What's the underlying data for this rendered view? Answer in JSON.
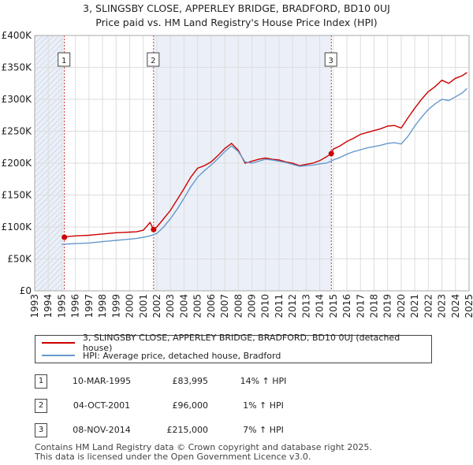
{
  "title_line1": "3, SLINGSBY CLOSE, APPERLEY BRIDGE, BRADFORD, BD10 0UJ",
  "title_line2": "Price paid vs. HM Land Registry's House Price Index (HPI)",
  "colors": {
    "property": "#cc0000",
    "hpi": "#6699cc",
    "shade": "#dde6f4",
    "grid": "#dddddd"
  },
  "chart_data": {
    "type": "line",
    "x_ticks": [
      "1993",
      "1994",
      "1995",
      "1996",
      "1997",
      "1998",
      "1999",
      "2000",
      "2001",
      "2002",
      "2003",
      "2004",
      "2005",
      "2006",
      "2007",
      "2008",
      "2009",
      "2010",
      "2011",
      "2012",
      "2013",
      "2014",
      "2015",
      "2016",
      "2017",
      "2018",
      "2019",
      "2020",
      "2021",
      "2022",
      "2023",
      "2024",
      "2025"
    ],
    "y_ticks": [
      "£0",
      "£50K",
      "£100K",
      "£150K",
      "£200K",
      "£250K",
      "£300K",
      "£350K",
      "£400K"
    ],
    "xlim": [
      1993,
      2025
    ],
    "ylim": [
      0,
      400000
    ],
    "series": [
      {
        "name": "3, SLINGSBY CLOSE, APPERLEY BRIDGE, BRADFORD, BD10 0UJ (detached house)",
        "x": [
          1995.19,
          1995.5,
          1996,
          1996.5,
          1997,
          1997.5,
          1998,
          1998.5,
          1999,
          1999.5,
          2000,
          2000.5,
          2001,
          2001.5,
          2001.75,
          2002,
          2002.5,
          2003,
          2003.5,
          2004,
          2004.5,
          2005,
          2005.5,
          2006,
          2006.5,
          2007,
          2007.5,
          2008,
          2008.5,
          2009,
          2009.5,
          2010,
          2010.5,
          2011,
          2011.5,
          2012,
          2012.5,
          2013,
          2013.5,
          2014,
          2014.5,
          2014.85,
          2015,
          2015.5,
          2016,
          2016.5,
          2017,
          2017.5,
          2018,
          2018.5,
          2019,
          2019.5,
          2020,
          2020.5,
          2021,
          2021.5,
          2022,
          2022.5,
          2023,
          2023.5,
          2024,
          2024.5,
          2024.85
        ],
        "y": [
          83995,
          85000,
          86000,
          86500,
          87000,
          88000,
          89000,
          90000,
          91000,
          91500,
          92000,
          92500,
          95000,
          107000,
          96000,
          100000,
          113000,
          126000,
          143000,
          160000,
          178000,
          192000,
          196000,
          202000,
          212000,
          223000,
          231000,
          220000,
          200000,
          203000,
          206000,
          208000,
          206000,
          205000,
          202000,
          200000,
          196000,
          198000,
          200000,
          204000,
          210000,
          215000,
          222000,
          227000,
          234000,
          239000,
          245000,
          248000,
          251000,
          254000,
          258000,
          259000,
          255000,
          271000,
          286000,
          300000,
          312000,
          320000,
          330000,
          325000,
          333000,
          337000,
          342000
        ]
      },
      {
        "name": "HPI: Average price, detached house, Bradford",
        "x": [
          1995.0,
          1995.5,
          1996,
          1996.5,
          1997,
          1997.5,
          1998,
          1998.5,
          1999,
          1999.5,
          2000,
          2000.5,
          2001,
          2001.5,
          2002,
          2002.5,
          2003,
          2003.5,
          2004,
          2004.5,
          2005,
          2005.5,
          2006,
          2006.5,
          2007,
          2007.5,
          2008,
          2008.5,
          2009,
          2009.5,
          2010,
          2010.5,
          2011,
          2011.5,
          2012,
          2012.5,
          2013,
          2013.5,
          2014,
          2014.5,
          2015,
          2015.5,
          2016,
          2016.5,
          2017,
          2017.5,
          2018,
          2018.5,
          2019,
          2019.5,
          2020,
          2020.5,
          2021,
          2021.5,
          2022,
          2022.5,
          2023,
          2023.5,
          2024,
          2024.5,
          2024.85
        ],
        "y": [
          73000,
          73500,
          74000,
          74500,
          75000,
          76000,
          77000,
          78000,
          79000,
          80000,
          81000,
          82000,
          84000,
          86000,
          90000,
          100000,
          113000,
          128000,
          145000,
          163000,
          178000,
          188000,
          197000,
          207000,
          218000,
          227000,
          218000,
          202000,
          200000,
          203000,
          206000,
          205000,
          203000,
          201000,
          198000,
          195000,
          196000,
          197000,
          199000,
          200000,
          205000,
          209000,
          214000,
          218000,
          221000,
          224000,
          226000,
          228000,
          231000,
          232000,
          230000,
          242000,
          258000,
          272000,
          284000,
          293000,
          300000,
          298000,
          304000,
          310000,
          317000
        ]
      }
    ],
    "sales": [
      {
        "label": "1",
        "x": 1995.19,
        "price": 83995,
        "date": "10-MAR-1995",
        "price_text": "£83,995",
        "hpi": "14% ↑ HPI"
      },
      {
        "label": "2",
        "x": 2001.76,
        "price": 96000,
        "date": "04-OCT-2001",
        "price_text": "£96,000",
        "hpi": "1% ↑ HPI"
      },
      {
        "label": "3",
        "x": 2014.85,
        "price": 215000,
        "date": "08-NOV-2014",
        "price_text": "£215,000",
        "hpi": "7% ↑ HPI"
      }
    ]
  },
  "legend": {
    "property": "3, SLINGSBY CLOSE, APPERLEY BRIDGE, BRADFORD, BD10 0UJ (detached house)",
    "hpi": "HPI: Average price, detached house, Bradford"
  },
  "footer": {
    "line1": "Contains HM Land Registry data © Crown copyright and database right 2025.",
    "line2": "This data is licensed under the Open Government Licence v3.0."
  }
}
